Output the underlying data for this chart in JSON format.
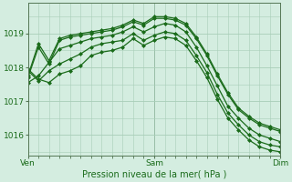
{
  "title": "Pression niveau de la mer( hPa )",
  "bg_color": "#d4ede0",
  "grid_color": "#a8cdb8",
  "line_color": "#1a6b1a",
  "marker_color": "#1a6b1a",
  "ylim": [
    1015.4,
    1019.9
  ],
  "yticks": [
    1016,
    1017,
    1018,
    1019
  ],
  "xlim": [
    0,
    48
  ],
  "xtick_labels": [
    "Ven",
    "Sam",
    "Dim"
  ],
  "xtick_positions": [
    0,
    24,
    48
  ],
  "series": [
    [
      1017.7,
      1018.6,
      1018.1,
      1018.8,
      1018.9,
      1018.95,
      1019.0,
      1019.05,
      1019.1,
      1019.2,
      1019.35,
      1019.25,
      1019.45,
      1019.45,
      1019.4,
      1019.25,
      1018.85,
      1018.35,
      1017.75,
      1017.2,
      1016.75,
      1016.5,
      1016.3,
      1016.2,
      1016.1
    ],
    [
      1017.75,
      1018.7,
      1018.2,
      1018.85,
      1018.95,
      1019.0,
      1019.05,
      1019.1,
      1019.15,
      1019.25,
      1019.4,
      1019.3,
      1019.5,
      1019.5,
      1019.45,
      1019.3,
      1018.9,
      1018.4,
      1017.8,
      1017.25,
      1016.8,
      1016.55,
      1016.35,
      1016.25,
      1016.15
    ],
    [
      1017.55,
      1017.75,
      1018.15,
      1018.55,
      1018.65,
      1018.75,
      1018.85,
      1018.9,
      1018.95,
      1019.05,
      1019.2,
      1019.05,
      1019.2,
      1019.3,
      1019.25,
      1019.05,
      1018.6,
      1018.05,
      1017.45,
      1016.85,
      1016.5,
      1016.2,
      1016.0,
      1015.9,
      1015.8
    ],
    [
      1017.9,
      1017.6,
      1017.9,
      1018.1,
      1018.25,
      1018.4,
      1018.6,
      1018.7,
      1018.75,
      1018.8,
      1019.0,
      1018.8,
      1018.95,
      1019.05,
      1019.0,
      1018.8,
      1018.35,
      1017.85,
      1017.2,
      1016.65,
      1016.3,
      1016.0,
      1015.8,
      1015.7,
      1015.65
    ],
    [
      1017.95,
      1017.65,
      1017.55,
      1017.8,
      1017.9,
      1018.05,
      1018.35,
      1018.45,
      1018.5,
      1018.6,
      1018.85,
      1018.65,
      1018.8,
      1018.9,
      1018.85,
      1018.65,
      1018.2,
      1017.7,
      1017.05,
      1016.5,
      1016.15,
      1015.85,
      1015.65,
      1015.55,
      1015.5
    ]
  ],
  "line_width": 0.9,
  "marker": "D",
  "marker_size": 2.0
}
